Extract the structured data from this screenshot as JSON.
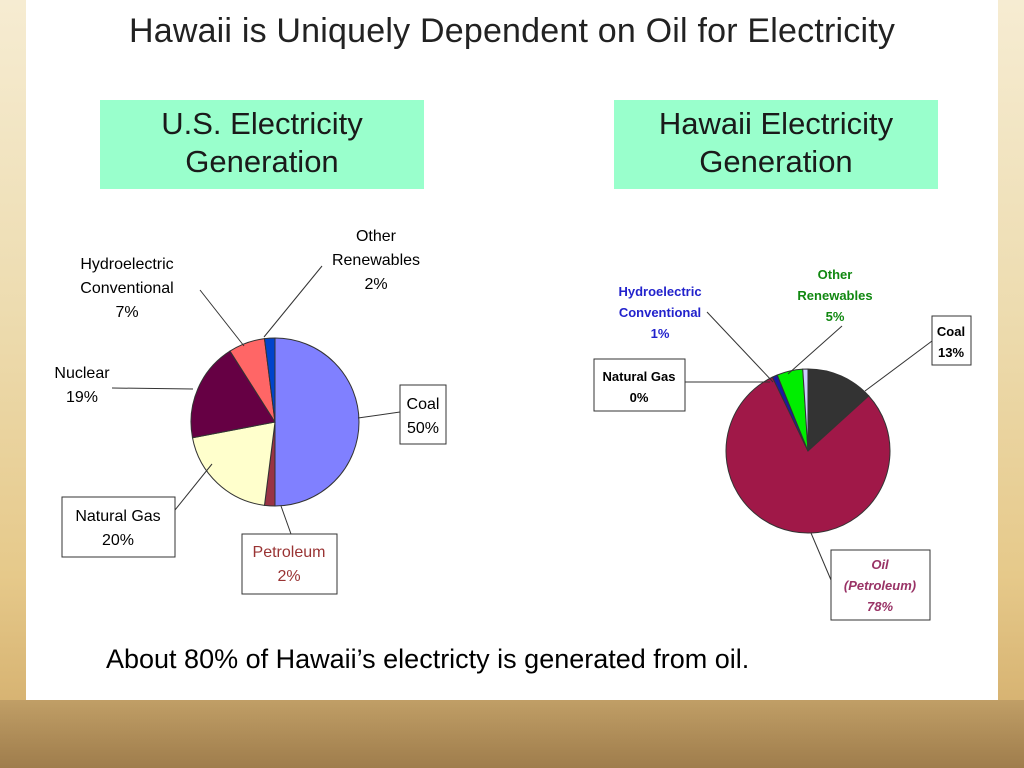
{
  "slide": {
    "title": "Hawaii is Uniquely Dependent on Oil for Electricity",
    "footnote": "About 80% of Hawaii’s electricty is generated from oil."
  },
  "chart_data": [
    {
      "type": "pie",
      "title": "U.S. Electricity Generation",
      "title_lines": [
        "U.S. Electricity",
        "Generation"
      ],
      "slices": [
        {
          "name": "Coal",
          "label_lines": [
            "Coal"
          ],
          "pct_label": "50%",
          "value": 50,
          "color": "#8080ff",
          "label_color": "#000000",
          "boxed": true
        },
        {
          "name": "Petroleum",
          "label_lines": [
            "Petroleum"
          ],
          "pct_label": "2%",
          "value": 2,
          "color": "#993344",
          "label_color": "#993333",
          "boxed": true
        },
        {
          "name": "Natural Gas",
          "label_lines": [
            "Natural Gas"
          ],
          "pct_label": "20%",
          "value": 20,
          "color": "#ffffcc",
          "label_color": "#000000",
          "boxed": true
        },
        {
          "name": "Nuclear",
          "label_lines": [
            "Nuclear"
          ],
          "pct_label": "19%",
          "value": 19,
          "color": "#660044",
          "label_color": "#000000",
          "boxed": false
        },
        {
          "name": "Hydroelectric Conventional",
          "label_lines": [
            "Hydroelectric",
            "Conventional"
          ],
          "pct_label": "7%",
          "value": 7,
          "color": "#ff6666",
          "label_color": "#000000",
          "boxed": false
        },
        {
          "name": "Other Renewables",
          "label_lines": [
            "Other",
            "Renewables"
          ],
          "pct_label": "2%",
          "value": 2,
          "color": "#0044cc",
          "label_color": "#000000",
          "boxed": false
        }
      ]
    },
    {
      "type": "pie",
      "title": "Hawaii Electricity Generation",
      "title_lines": [
        "Hawaii Electricity",
        "Generation"
      ],
      "slices": [
        {
          "name": "Coal",
          "label_lines": [
            "Coal"
          ],
          "pct_label": "13%",
          "value": 13,
          "color": "#333333",
          "label_color": "#000000",
          "boxed": true
        },
        {
          "name": "Oil (Petroleum)",
          "label_lines": [
            "Oil",
            "(Petroleum)"
          ],
          "pct_label": "78%",
          "value": 78,
          "color": "#a01848",
          "label_color": "#993366",
          "boxed": true,
          "italic": true
        },
        {
          "name": "Natural Gas",
          "label_lines": [
            "Natural Gas"
          ],
          "pct_label": "0%",
          "value": 0,
          "color": "#999999",
          "label_color": "#000000",
          "boxed": true
        },
        {
          "name": "Hydroelectric Conventional",
          "label_lines": [
            "Hydroelectric",
            "Conventional"
          ],
          "pct_label": "1%",
          "value": 1,
          "color": "#1a1aa0",
          "label_color": "#2222cc",
          "boxed": false
        },
        {
          "name": "Other Renewables",
          "label_lines": [
            "Other",
            "Renewables"
          ],
          "pct_label": "5%",
          "value": 5,
          "color": "#00ee00",
          "label_color": "#118811",
          "boxed": false
        },
        {
          "name": "unlabeled",
          "value": 1,
          "color": "#ccccff"
        }
      ]
    }
  ]
}
